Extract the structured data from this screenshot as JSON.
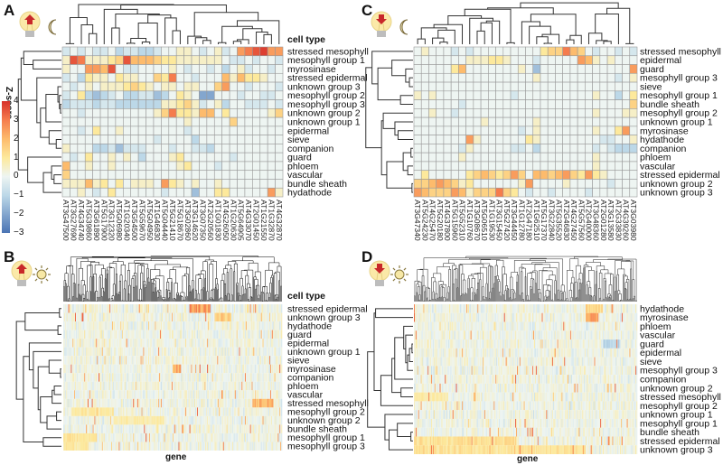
{
  "legend": {
    "title": "Z-score",
    "ticks": [
      "4",
      "3",
      "2",
      "1",
      "0",
      "−1",
      "−2",
      "−3"
    ],
    "tick_values": [
      4,
      3,
      2,
      1,
      0,
      -1,
      -2,
      -3
    ]
  },
  "colors": {
    "min": "#4a74b4",
    "neg1": "#bcd8e8",
    "zero": "#eef5f2",
    "pos1": "#fde99c",
    "pos2": "#fdbb6c",
    "pos3": "#f57c4d",
    "max": "#d7302a",
    "grid": "#9a9a9a"
  },
  "icons": {
    "A": [
      "lightbulb-arrow-up-icon",
      "moon-icon"
    ],
    "B": [
      "lightbulb-arrow-up-icon",
      "sun-icon"
    ],
    "C": [
      "lightbulb-arrow-down-icon",
      "moon-icon"
    ],
    "D": [
      "lightbulb-arrow-down-icon",
      "sun-icon"
    ]
  },
  "chart_data": [
    {
      "panel": "A",
      "type": "heatmap",
      "column_title": "cell type",
      "xlabel": "",
      "zlim": [
        -3,
        4
      ],
      "rows": [
        "stressed mesophyll",
        "mesophyll group 1",
        "myrosinase",
        "stressed epidermal",
        "unknown group 3",
        "mesophyll group 2",
        "mesophyll group 3",
        "unknown group 2",
        "unknown group 1",
        "epidermal",
        "sieve",
        "companion",
        "guard",
        "phloem",
        "vascular",
        "bundle sheath",
        "hydathode"
      ],
      "columns": [
        "AT3G47500",
        "AT3G27690",
        "AT4G34740",
        "AT5G39860",
        "AT3G61890",
        "AT5G17900",
        "AT3G12320",
        "AT5G06980",
        "AT1G20340",
        "AT3G54500",
        "AT5G59670",
        "AT5G04950",
        "AT1G46830",
        "AT5G04440",
        "AT5G21410",
        "AT5G18670",
        "AT3G02860",
        "AT3G14620",
        "AT3G07350",
        "AT2G20560",
        "AT1G01830",
        "AT4G26050",
        "AT1G20630",
        "AT5G64905",
        "AT4G33070",
        "AT2G01450",
        "AT1G21550",
        "AT1G32870",
        "AT4G32870"
      ],
      "values": [
        [
          -0.5,
          0,
          -0.5,
          0,
          -0.5,
          -0.5,
          0,
          -1,
          -0.5,
          -0.5,
          -1,
          -1,
          -0.5,
          0,
          0,
          0.5,
          0.5,
          0,
          -0.5,
          0,
          0.5,
          -0.5,
          0,
          2.5,
          3,
          3.5,
          3.8,
          2.5,
          2.5
        ],
        [
          0.5,
          3.5,
          3,
          0.5,
          0.5,
          0.5,
          1,
          1.5,
          3.5,
          2,
          2,
          2,
          1.5,
          1,
          1,
          0.5,
          0.5,
          0.5,
          0.5,
          0.5,
          0.5,
          0,
          -0.5,
          -0.5,
          0,
          -0.5,
          0,
          0,
          -0.5
        ],
        [
          0.5,
          0,
          0,
          2.5,
          2.5,
          2,
          3.5,
          0,
          -0.5,
          -0.5,
          0,
          0,
          0,
          0,
          0.5,
          0,
          -0.5,
          0,
          0,
          -0.5,
          0,
          -1,
          0,
          0.5,
          -0.5,
          0,
          0,
          -0.5,
          0
        ],
        [
          -0.5,
          0,
          -1,
          1,
          0.5,
          0.5,
          0,
          1,
          0.5,
          0.5,
          0,
          0,
          1.5,
          1,
          3,
          0,
          0,
          -0.5,
          0,
          0,
          0,
          2,
          0.5,
          2,
          1,
          1,
          0.5,
          0,
          0
        ],
        [
          0,
          -0.5,
          0,
          0.5,
          0,
          0.5,
          0.5,
          0.5,
          1,
          1.5,
          1,
          0.5,
          0,
          0.5,
          0.5,
          0,
          0.5,
          0.5,
          0,
          0,
          1.5,
          2.5,
          0,
          0,
          -0.5,
          0,
          0,
          0,
          -0.5
        ],
        [
          -0.5,
          0,
          1,
          -1,
          -1.5,
          -1,
          -0.5,
          0,
          -1,
          -1,
          -0.5,
          -0.5,
          -1.5,
          -1,
          0,
          1,
          0.5,
          0,
          -2,
          -2,
          0,
          0,
          0,
          -0.5,
          0,
          0,
          -0.5,
          -0.5,
          0
        ],
        [
          -1,
          -0.5,
          -0.5,
          -0.5,
          -1,
          -0.5,
          -0.5,
          -1,
          -1,
          -1,
          -1,
          -1,
          -1,
          0.5,
          0.5,
          1,
          1.5,
          0.5,
          -0.5,
          0,
          0.5,
          -1,
          0,
          0,
          -0.5,
          -0.5,
          -0.5,
          0,
          -0.5
        ],
        [
          0,
          0,
          -0.5,
          0,
          0,
          0,
          0,
          0,
          0,
          0,
          0,
          0,
          0.5,
          1.5,
          3,
          1,
          1,
          0.5,
          2,
          2,
          0,
          1,
          0,
          0,
          0,
          0,
          0,
          0.5,
          1.5
        ],
        [
          0,
          0,
          0,
          0,
          0,
          0,
          0,
          0,
          0,
          0,
          0,
          0,
          0,
          0,
          0,
          0,
          0.5,
          0,
          0,
          0,
          0,
          0,
          1.5,
          0,
          0,
          0,
          0,
          0,
          0
        ],
        [
          0,
          0,
          -0.5,
          0,
          1,
          0,
          0,
          0.5,
          0,
          0,
          0,
          0,
          0,
          0,
          0,
          0,
          -0.5,
          0,
          0,
          0,
          0,
          0,
          0,
          0,
          0,
          0,
          0,
          0,
          0
        ],
        [
          0,
          0,
          0,
          0,
          0,
          0,
          0,
          0,
          0,
          0,
          0,
          0,
          -0.5,
          0,
          0,
          0,
          0,
          -1,
          0,
          0,
          0,
          0,
          0,
          0,
          0,
          0,
          0,
          0,
          0
        ],
        [
          0.5,
          0,
          0,
          0,
          -1,
          -1,
          -0.5,
          -1.5,
          -0.5,
          -0.5,
          -0.5,
          0,
          0,
          0,
          -0.5,
          0,
          0,
          -0.5,
          -0.5,
          -1,
          0,
          0,
          0,
          0,
          0,
          0,
          0,
          0,
          0
        ],
        [
          0,
          -0.5,
          0,
          1,
          0,
          0,
          0.5,
          0,
          0.5,
          0,
          -1,
          0,
          0,
          0,
          0.5,
          1,
          0,
          0,
          0,
          0,
          0,
          0,
          -0.5,
          0,
          0,
          0,
          0,
          0,
          0
        ],
        [
          2,
          0,
          0,
          0.5,
          0,
          0,
          0.5,
          0,
          0,
          0,
          0,
          0,
          0,
          0,
          0,
          0.5,
          1,
          0,
          0,
          0,
          -0.5,
          0,
          0,
          0,
          0,
          0,
          0,
          0,
          0
        ],
        [
          1.5,
          0,
          0,
          0,
          0,
          0,
          0,
          0,
          0,
          0,
          0,
          0,
          0,
          0,
          0,
          0,
          0,
          0,
          0,
          0,
          0,
          0,
          0,
          0,
          0,
          0,
          0,
          0,
          0
        ],
        [
          0.5,
          0.5,
          0.5,
          2,
          0.5,
          1,
          0,
          1,
          0,
          0.5,
          0.5,
          0.5,
          0,
          2.5,
          1,
          0.5,
          0,
          0.5,
          0,
          0,
          0.5,
          0,
          0,
          0,
          0,
          0,
          0,
          0,
          0
        ],
        [
          0,
          0,
          0.5,
          0,
          -0.5,
          0,
          1,
          0,
          0,
          0,
          0,
          0,
          0,
          -0.5,
          0,
          0,
          0,
          -1.5,
          0,
          0,
          1,
          1,
          0,
          0,
          0,
          0,
          0,
          2.5,
          0.5
        ]
      ]
    },
    {
      "panel": "B",
      "type": "heatmap",
      "column_title": "cell type",
      "xlabel": "gene",
      "zlim": [
        -3,
        4
      ],
      "rows": [
        "stressed epidermal",
        "unknown group 3",
        "hydathode",
        "guard",
        "epidermal",
        "unknown group 1",
        "sieve",
        "myrosinase",
        "companion",
        "phloem",
        "vascular",
        "stressed mesophyll",
        "mesophyll group 2",
        "unknown group 2",
        "bundle sheath",
        "mesophyll group 1",
        "mesophyll group 3"
      ]
    },
    {
      "panel": "C",
      "type": "heatmap",
      "column_title": "",
      "xlabel": "",
      "zlim": [
        -3,
        4
      ],
      "rows": [
        "stressed mesophyll",
        "epidermal",
        "guard",
        "mesophyll group 3",
        "sieve",
        "mesophyll group 1",
        "bundle sheath",
        "mesophyll group 2",
        "unknown group 1",
        "myrosinase",
        "hydathode",
        "companion",
        "phloem",
        "vascular",
        "stressed epidermal",
        "unknown group 2",
        "unknown group 3"
      ],
      "columns": [
        "AT3G47340",
        "AT5G24230",
        "AT4G25470",
        "AT5G20180",
        "AT4G37800",
        "AT5G15960",
        "AT5G52310",
        "AT1G10760",
        "AT3G08670",
        "AT5G06510",
        "AT1G19530",
        "AT3G15450",
        "AT5G27420",
        "AT3G44450",
        "AT1G12780",
        "AT2G47180",
        "AT1G62510",
        "AT5G17370",
        "AT3G22840",
        "AT5G35520",
        "AT2G46830",
        "AT4G27450",
        "AT5G57560",
        "AT2G40000",
        "AT3G48360",
        "AT2G01280",
        "AT3G13580",
        "AT2G33830",
        "AT4G39260",
        "AT3G03980"
      ],
      "values": [
        [
          0,
          0.5,
          0,
          0,
          0,
          -0.5,
          0,
          -0.5,
          0,
          0,
          0,
          0,
          0,
          0,
          0,
          0,
          0,
          1,
          1.5,
          1.5,
          3,
          2,
          1.5,
          0,
          -0.5,
          0,
          0,
          -0.5,
          0,
          -0.5
        ],
        [
          0,
          0,
          0,
          0,
          0,
          0,
          0,
          0.5,
          0.5,
          0.5,
          1,
          1,
          0.5,
          0,
          0,
          0,
          -0.5,
          0,
          0,
          0,
          0,
          0,
          2.5,
          2,
          0.5,
          0,
          0.5,
          0,
          0,
          0
        ],
        [
          0,
          0,
          0,
          0,
          0,
          1,
          2,
          0,
          0,
          0,
          0,
          0,
          0,
          0,
          0.5,
          0,
          -1.5,
          0,
          0,
          0,
          0,
          0,
          0,
          0,
          0,
          0,
          0,
          0,
          0,
          2.5
        ],
        [
          0,
          0,
          0,
          0,
          0,
          0,
          0,
          0,
          0,
          0,
          0,
          0,
          0,
          0,
          0,
          0,
          0.5,
          0,
          0,
          0,
          0,
          0,
          0,
          0,
          0,
          0,
          0,
          -0.5,
          0,
          0.5
        ],
        [
          0,
          0,
          0,
          0,
          0,
          0,
          0,
          0,
          0,
          0,
          0,
          0,
          0,
          0,
          0,
          0,
          0,
          0,
          0,
          0,
          0,
          0,
          0,
          0,
          0,
          0,
          0,
          0,
          0,
          0
        ],
        [
          0.5,
          0,
          0.5,
          0,
          0,
          0,
          0,
          0,
          0,
          0,
          0,
          0,
          0,
          -0.5,
          0,
          0,
          0,
          0,
          0,
          0,
          0,
          0,
          0,
          0,
          0.5,
          0,
          0,
          -1,
          0,
          1
        ],
        [
          0,
          0,
          0,
          0,
          0,
          0,
          -0.5,
          0,
          0,
          0,
          0,
          0,
          0,
          0,
          0,
          0,
          0,
          0,
          0,
          0,
          0,
          0,
          0,
          0,
          0,
          0,
          0,
          0,
          0,
          1.5
        ],
        [
          0,
          0,
          0.5,
          0,
          0,
          -0.5,
          0,
          0,
          0,
          0,
          0,
          0,
          0,
          0,
          0,
          0,
          0,
          0,
          0,
          0,
          0,
          0,
          0,
          0,
          0.5,
          0,
          0,
          0,
          0.5,
          0.5
        ],
        [
          0,
          0,
          0,
          0,
          0,
          0,
          0,
          0,
          0,
          0.5,
          0,
          0,
          0,
          0,
          0,
          0,
          0.5,
          0,
          0,
          0,
          0,
          0,
          0,
          0,
          0,
          0,
          0,
          0,
          0,
          0
        ],
        [
          0,
          0,
          0,
          0,
          0,
          0,
          0,
          0,
          0,
          0,
          0,
          0,
          0,
          0,
          -0.5,
          0,
          0.5,
          0,
          0,
          0,
          0,
          0,
          0,
          0,
          0.5,
          0,
          0,
          1,
          2.5,
          0
        ],
        [
          0,
          0,
          0,
          0,
          0,
          0,
          0,
          2.5,
          0.5,
          0,
          0,
          0,
          0,
          0,
          0,
          1,
          0.5,
          0,
          0,
          0,
          0,
          0,
          0,
          0,
          0,
          -0.5,
          -0.5,
          0,
          0,
          0.5
        ],
        [
          0,
          0,
          0,
          0,
          0,
          0,
          -0.5,
          0.5,
          0,
          0,
          0,
          0,
          0,
          -0.5,
          -0.5,
          0,
          -1,
          0,
          0,
          0,
          0,
          0,
          0,
          0,
          -0.5,
          0,
          -0.5,
          -1,
          -1,
          -1
        ],
        [
          0,
          0,
          0,
          0,
          0,
          0,
          0.5,
          0,
          0,
          0,
          0,
          0,
          0,
          0,
          0,
          0,
          0,
          0,
          0,
          0,
          0,
          0,
          0,
          0,
          0.5,
          0,
          0,
          0,
          0,
          0
        ],
        [
          0,
          0,
          0,
          0,
          0,
          0,
          0,
          0,
          0,
          0,
          0,
          0,
          0,
          0,
          0,
          0,
          0,
          0,
          0,
          0,
          0,
          0,
          0,
          0,
          0.5,
          0,
          0,
          0,
          0,
          0
        ],
        [
          0,
          1,
          0,
          0,
          0,
          0,
          0,
          1,
          1.5,
          2,
          1.5,
          1,
          1.5,
          2.5,
          1.5,
          0,
          2,
          2,
          1.5,
          2,
          2.5,
          1.5,
          1,
          2.5,
          1,
          0.5,
          0,
          0,
          0,
          0
        ],
        [
          1.5,
          1.5,
          2,
          2.5,
          2,
          1.5,
          0.5,
          1,
          0,
          0,
          0,
          0,
          0,
          0,
          0.5,
          2.5,
          0,
          0,
          0,
          0,
          0.5,
          0,
          0,
          0,
          0,
          0,
          -0.5,
          0,
          0,
          0
        ],
        [
          2.5,
          2,
          1.5,
          1.5,
          1.5,
          2.5,
          2,
          0.5,
          1.5,
          1.5,
          1.5,
          3,
          1.5,
          1,
          0,
          -0.5,
          0,
          0,
          -0.5,
          0,
          0,
          0,
          0,
          -0.5,
          0,
          0,
          0,
          0,
          0,
          0
        ]
      ]
    },
    {
      "panel": "D",
      "type": "heatmap",
      "column_title": "",
      "xlabel": "gene",
      "zlim": [
        -3,
        4
      ],
      "rows": [
        "hydathode",
        "myrosinase",
        "phloem",
        "vascular",
        "guard",
        "epidermal",
        "sieve",
        "mesophyll group 3",
        "companion",
        "unknown group 2",
        "stressed mesophyll",
        "mesophyll group 2",
        "unknown group 1",
        "mesophyll group 1",
        "bundle sheath",
        "stressed epidermal",
        "unknown group 3"
      ]
    }
  ]
}
